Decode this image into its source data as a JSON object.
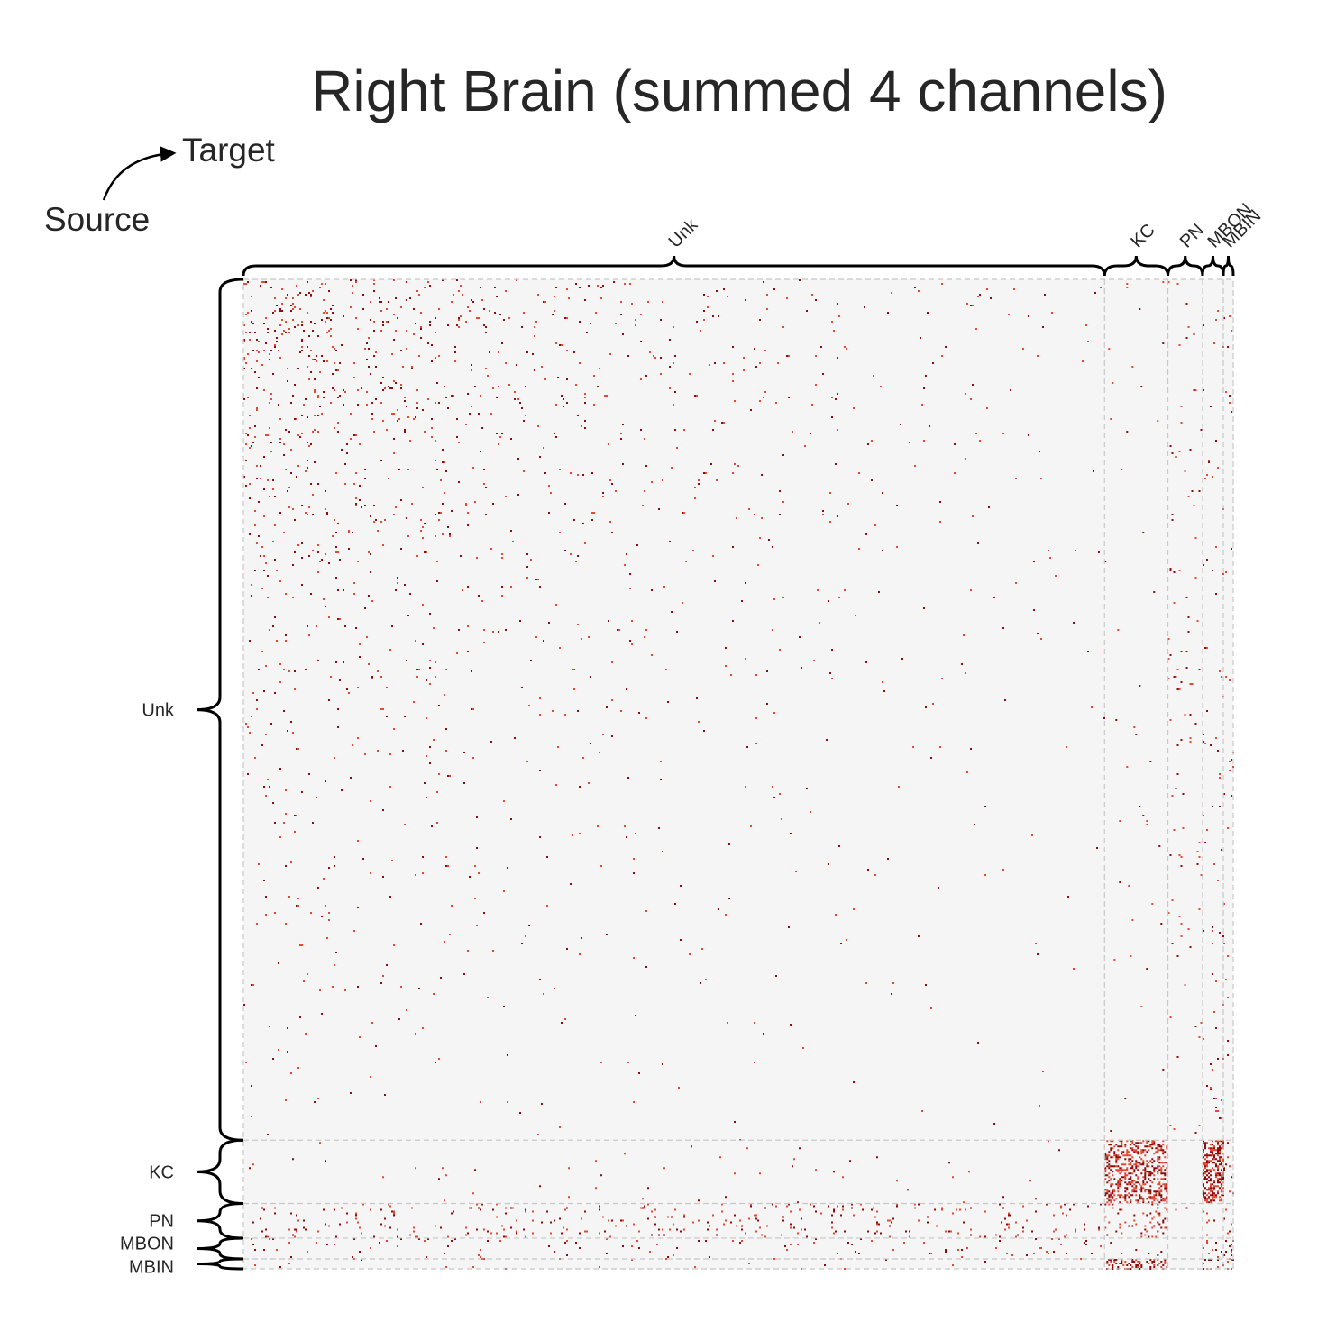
{
  "chart_data": {
    "type": "heatmap",
    "title": "Right Brain (summed 4 channels)",
    "source_label": "Source",
    "target_label": "Target",
    "row_groups": [
      "Unk",
      "KC",
      "PN",
      "MBON",
      "MBIN"
    ],
    "col_groups": [
      "Unk",
      "KC",
      "PN",
      "MBON",
      "MBIN"
    ],
    "group_fraction": [
      0.87,
      0.064,
      0.035,
      0.021,
      0.01
    ],
    "block_density": [
      [
        0.015,
        0.002,
        0.01,
        0.012,
        0.008
      ],
      [
        0.003,
        0.35,
        0.0,
        0.5,
        0.05
      ],
      [
        0.03,
        0.08,
        0.01,
        0.03,
        0.02
      ],
      [
        0.02,
        0.01,
        0.0,
        0.1,
        0.12
      ],
      [
        0.004,
        0.3,
        0.0,
        0.15,
        0.08
      ]
    ],
    "colors": {
      "background": "#f5f5f5",
      "edge_light": "#e34a33",
      "edge_dark": "#8b0d0d",
      "divider": "#c8c8c8"
    },
    "grid": false,
    "legend": "none"
  }
}
